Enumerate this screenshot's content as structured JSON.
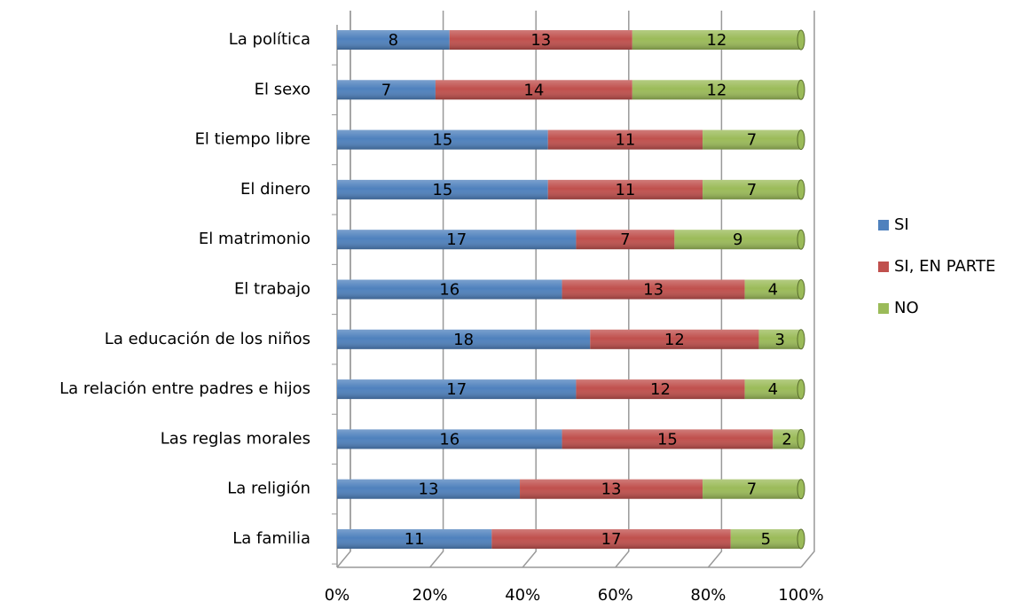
{
  "chart_data": {
    "type": "stacked_percent_barh",
    "categories": [
      "La política",
      "El sexo",
      "El tiempo libre",
      "El dinero",
      "El matrimonio",
      "El trabajo",
      "La educación de los niños",
      "La relación entre padres e hijos",
      "Las reglas morales",
      "La religión",
      "La familia"
    ],
    "series": [
      {
        "name": "SI",
        "color": "#4f81bd",
        "values": [
          8,
          7,
          15,
          15,
          17,
          16,
          18,
          17,
          16,
          13,
          11
        ]
      },
      {
        "name": "SI, EN PARTE",
        "color": "#c0504d",
        "values": [
          13,
          14,
          11,
          11,
          7,
          13,
          12,
          12,
          15,
          13,
          17
        ]
      },
      {
        "name": "NO",
        "color": "#9bbb59",
        "values": [
          12,
          12,
          7,
          7,
          9,
          4,
          3,
          4,
          2,
          7,
          5
        ]
      }
    ],
    "xlim": [
      0,
      100
    ],
    "xticks": [
      {
        "value": 0,
        "label": "0%"
      },
      {
        "value": 20,
        "label": "20%"
      },
      {
        "value": 40,
        "label": "40%"
      },
      {
        "value": 60,
        "label": "60%"
      },
      {
        "value": 80,
        "label": "80%"
      },
      {
        "value": 100,
        "label": "100%"
      }
    ],
    "grid": true,
    "legend": "right"
  }
}
